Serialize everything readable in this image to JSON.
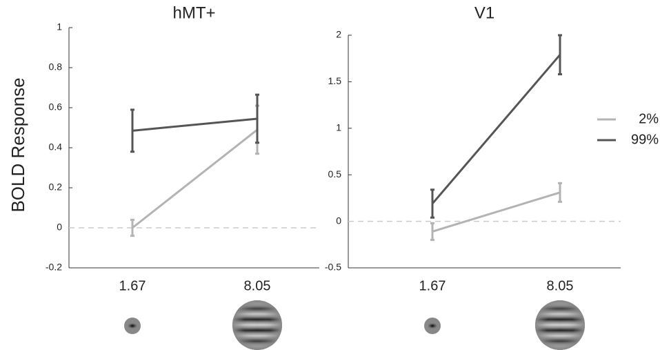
{
  "chart_data": [
    {
      "type": "line",
      "title": "hMT+",
      "ylabel": "BOLD Response",
      "categories": [
        "1.67",
        "8.05"
      ],
      "series": [
        {
          "name": "2%",
          "color": "#b3b3b3",
          "values": [
            0.0,
            0.49
          ],
          "errors": [
            0.04,
            0.12
          ]
        },
        {
          "name": "99%",
          "color": "#555555",
          "values": [
            0.485,
            0.545
          ],
          "errors": [
            0.105,
            0.12
          ]
        }
      ],
      "ylim": [
        -0.2,
        1
      ],
      "yticks": [
        -0.2,
        0,
        0.2,
        0.4,
        0.6,
        0.8,
        1
      ],
      "reference_line": 0
    },
    {
      "type": "line",
      "title": "V1",
      "categories": [
        "1.67",
        "8.05"
      ],
      "series": [
        {
          "name": "2%",
          "color": "#b3b3b3",
          "values": [
            -0.11,
            0.31
          ],
          "errors": [
            0.09,
            0.1
          ]
        },
        {
          "name": "99%",
          "color": "#555555",
          "values": [
            0.19,
            1.79
          ],
          "errors": [
            0.15,
            0.21
          ]
        }
      ],
      "ylim": [
        -0.5,
        2
      ],
      "yticks": [
        -0.5,
        0,
        0.5,
        1,
        1.5,
        2
      ],
      "reference_line": 0,
      "legend": "right"
    }
  ]
}
